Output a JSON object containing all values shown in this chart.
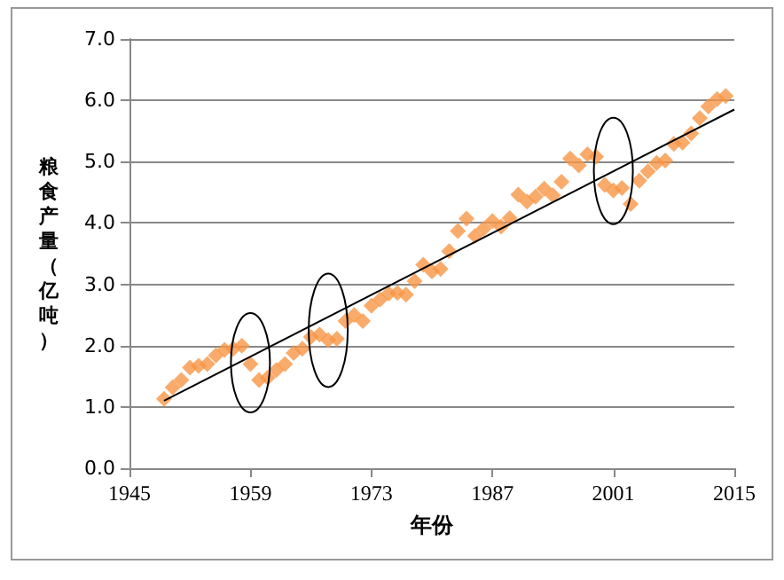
{
  "chart_data": {
    "type": "scatter",
    "xlabel": "年份",
    "ylabel": "粮食产量（亿吨）",
    "xlim": [
      1945,
      2015
    ],
    "xticks": [
      1945,
      1959,
      1973,
      1987,
      2001,
      2015
    ],
    "ylim": [
      0,
      7
    ],
    "yticks": [
      {
        "value": 0,
        "label": "0.0"
      },
      {
        "value": 1,
        "label": "1.0"
      },
      {
        "value": 2,
        "label": "2.0"
      },
      {
        "value": 3,
        "label": "3.0"
      },
      {
        "value": 4,
        "label": "4.0"
      },
      {
        "value": 5,
        "label": "5.0"
      },
      {
        "value": 6,
        "label": "6.0"
      },
      {
        "value": 7,
        "label": "7.0"
      }
    ],
    "grid": "y",
    "marker": "diamond",
    "series": [
      {
        "color": "#f79646",
        "x": [
          1949,
          1950,
          1951,
          1952,
          1953,
          1954,
          1955,
          1956,
          1957,
          1958,
          1959,
          1960,
          1961,
          1962,
          1963,
          1964,
          1965,
          1966,
          1967,
          1968,
          1969,
          1970,
          1971,
          1972,
          1973,
          1974,
          1975,
          1976,
          1977,
          1978,
          1979,
          1980,
          1981,
          1982,
          1983,
          1984,
          1985,
          1986,
          1987,
          1988,
          1989,
          1990,
          1991,
          1992,
          1993,
          1994,
          1995,
          1996,
          1997,
          1998,
          1999,
          2000,
          2001,
          2002,
          2003,
          2004,
          2005,
          2006,
          2007,
          2008,
          2009,
          2010,
          2011,
          2012,
          2013,
          2014
        ],
        "values": [
          1.13,
          1.32,
          1.44,
          1.64,
          1.67,
          1.7,
          1.84,
          1.93,
          1.95,
          2.0,
          1.7,
          1.44,
          1.48,
          1.6,
          1.7,
          1.88,
          1.95,
          2.14,
          2.18,
          2.09,
          2.11,
          2.4,
          2.5,
          2.4,
          2.65,
          2.75,
          2.85,
          2.86,
          2.83,
          3.05,
          3.32,
          3.21,
          3.25,
          3.54,
          3.87,
          4.07,
          3.79,
          3.91,
          4.03,
          3.94,
          4.08,
          4.46,
          4.35,
          4.43,
          4.56,
          4.45,
          4.67,
          5.05,
          4.94,
          5.12,
          5.08,
          4.62,
          4.53,
          4.57,
          4.31,
          4.69,
          4.84,
          4.98,
          5.02,
          5.29,
          5.31,
          5.46,
          5.71,
          5.9,
          6.02,
          6.07
        ]
      },
      {
        "type": "line",
        "color": "#000000",
        "marker": "none",
        "x": [
          1949,
          2015
        ],
        "values": [
          1.1,
          5.85
        ]
      }
    ]
  }
}
